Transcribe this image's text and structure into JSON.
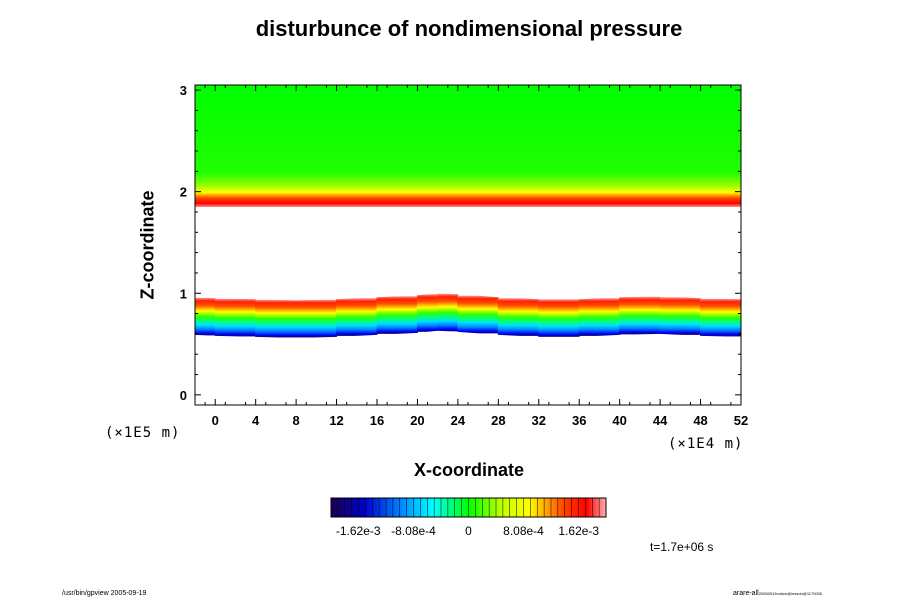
{
  "chart_data": {
    "type": "heatmap",
    "title": "disturbunce of nondimensional pressure",
    "xlabel": "X-coordinate",
    "ylabel": "Z-coordinate",
    "x_unit": "(×1E4 m)",
    "y_unit": "(×1E5 m)",
    "xlim": [
      -2,
      52
    ],
    "ylim": [
      -0.1,
      3.05
    ],
    "x_ticks": [
      "0",
      "4",
      "8",
      "12",
      "16",
      "20",
      "24",
      "28",
      "32",
      "36",
      "40",
      "44",
      "48",
      "52"
    ],
    "y_ticks": [
      "0",
      "1",
      "2",
      "3"
    ],
    "colorbar": {
      "ticks": [
        "-1.62e-3",
        "-8.08e-4",
        "0",
        "8.08e-4",
        "1.62e-3"
      ],
      "min": -0.00202,
      "max": 0.00202
    },
    "upper_layer": {
      "z_bottom": 1.85,
      "z_top": 3.05,
      "value_at_bottom": 0.00162,
      "value_above_transition": 0.0,
      "note_transition_depth": 0.25
    },
    "lower_layer": {
      "x": [
        -2,
        0,
        4,
        8,
        12,
        16,
        20,
        22,
        24,
        28,
        32,
        36,
        40,
        44,
        48,
        52
      ],
      "z_top": [
        0.96,
        0.95,
        0.94,
        0.93,
        0.94,
        0.96,
        0.98,
        1.0,
        0.99,
        0.96,
        0.94,
        0.94,
        0.96,
        0.97,
        0.95,
        0.94
      ],
      "thickness": 0.37,
      "value_at_top": 0.00162,
      "value_at_bottom": -0.00162
    },
    "annotation": "t=1.7e+06 s"
  },
  "footer": {
    "left": "/usr/bin/gpview 2005-09-19",
    "right": "arare-all",
    "right_sub": "20050919notice@lesson@1170000"
  }
}
